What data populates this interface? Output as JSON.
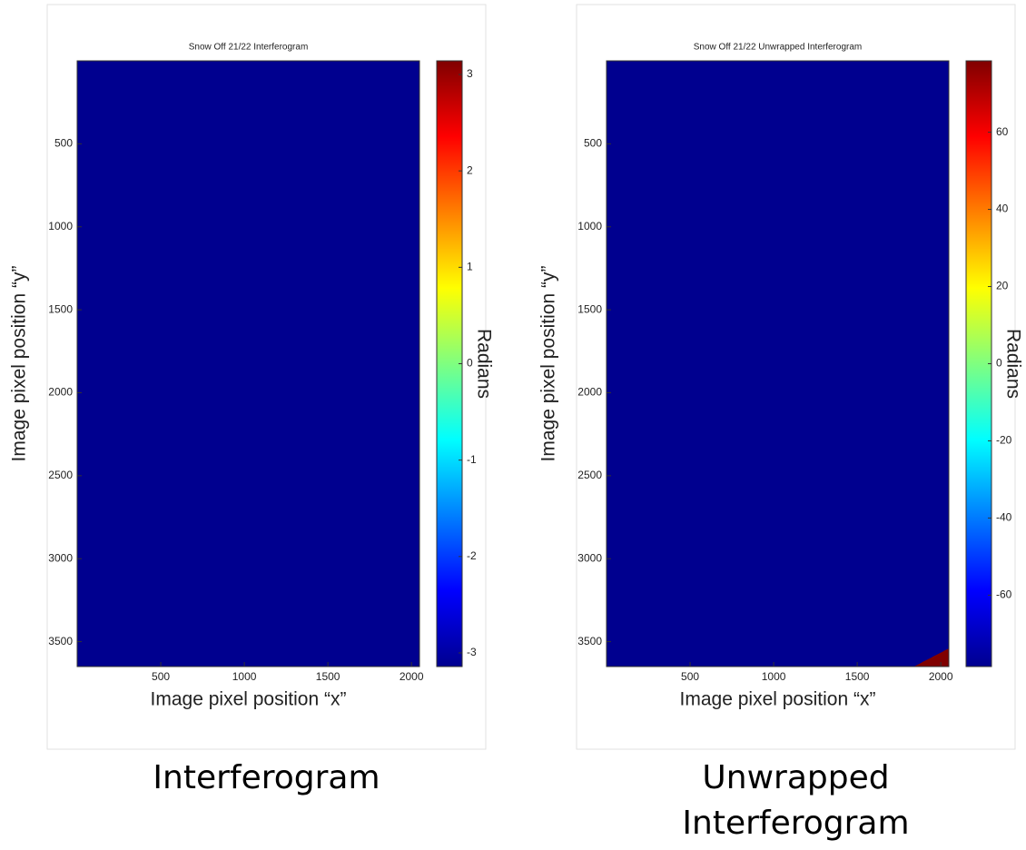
{
  "chart_data": [
    {
      "type": "image",
      "title": "Snow Off 21/22 Interferogram",
      "pattern": "fringes",
      "colormap": "jet",
      "xlabel": "Image pixel position “x”",
      "ylabel": "Image pixel position “y”",
      "colorbar_label": "Radians",
      "caption": "Interferogram",
      "xlim": [
        0,
        2048
      ],
      "ylim": [
        0,
        3650
      ],
      "xticks": [
        500,
        1000,
        1500,
        2000
      ],
      "yticks": [
        500,
        1000,
        1500,
        2000,
        2500,
        3000,
        3500
      ],
      "clim": [
        -3.1416,
        3.1416
      ],
      "cticks": [
        -3,
        -2,
        -1,
        0,
        1,
        2,
        3
      ]
    },
    {
      "type": "image",
      "title": "Snow Off 21/22 Unwrapped Interferogram",
      "pattern": "ramp",
      "colormap": "jet",
      "xlabel": "Image pixel position “x”",
      "ylabel": "Image pixel position “y”",
      "colorbar_label": "Radians",
      "caption": "Unwrapped Interferogram",
      "xlim": [
        0,
        2048
      ],
      "ylim": [
        0,
        3650
      ],
      "xticks": [
        500,
        1000,
        1500,
        2000
      ],
      "yticks": [
        500,
        1000,
        1500,
        2000,
        2500,
        3000,
        3500
      ],
      "clim": [
        -78.5,
        78.5
      ],
      "cticks": [
        -60,
        -40,
        -20,
        0,
        20,
        40,
        60
      ]
    }
  ]
}
